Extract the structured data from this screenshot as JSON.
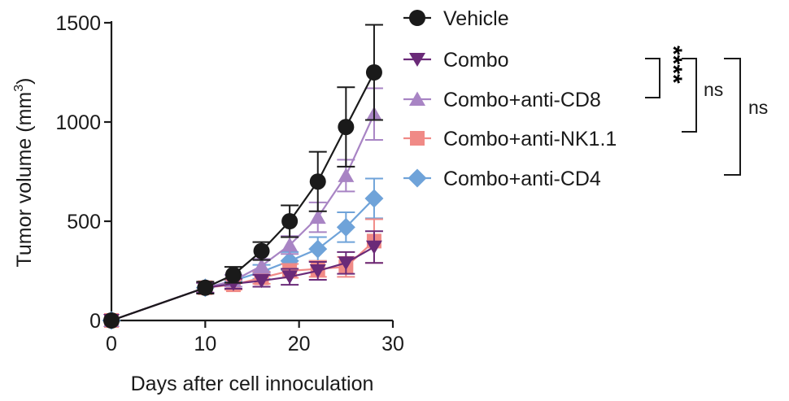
{
  "chart_data": {
    "type": "line",
    "title": "",
    "xlabel": "Days after cell innoculation",
    "ylabel_main": "Tumor  volume (mm",
    "ylabel_sup": "3",
    "ylabel_close": ")",
    "xlim": [
      0,
      30
    ],
    "ylim": [
      0,
      1500
    ],
    "xticks": [
      0,
      10,
      20,
      30
    ],
    "yticks": [
      0,
      500,
      1000,
      1500
    ],
    "x": [
      0,
      10,
      13,
      16,
      19,
      22,
      25,
      28
    ],
    "series": [
      {
        "name": "Vehicle",
        "color": "#1a1a1a",
        "marker": "circle",
        "values": [
          0,
          165,
          230,
          350,
          500,
          700,
          975,
          1250
        ],
        "errors": [
          0,
          30,
          40,
          45,
          80,
          150,
          200,
          240
        ]
      },
      {
        "name": "Combo",
        "color": "#6a2a78",
        "marker": "triangle-down",
        "values": [
          0,
          165,
          185,
          200,
          220,
          250,
          290,
          370
        ],
        "errors": [
          0,
          25,
          25,
          30,
          40,
          45,
          55,
          80
        ]
      },
      {
        "name": "Combo+anti-CD8",
        "color": "#a884c4",
        "marker": "triangle-up",
        "values": [
          0,
          165,
          200,
          275,
          380,
          520,
          730,
          1040
        ],
        "errors": [
          0,
          25,
          30,
          35,
          45,
          75,
          80,
          130
        ]
      },
      {
        "name": "Combo+anti-NK1.1",
        "color": "#f08a86",
        "marker": "square",
        "values": [
          0,
          165,
          180,
          215,
          250,
          260,
          270,
          400
        ],
        "errors": [
          0,
          25,
          25,
          30,
          35,
          40,
          50,
          110
        ]
      },
      {
        "name": "Combo+anti-CD4",
        "color": "#6fa3d9",
        "marker": "diamond",
        "values": [
          0,
          165,
          200,
          245,
          300,
          360,
          470,
          615
        ],
        "errors": [
          0,
          25,
          30,
          35,
          45,
          60,
          75,
          100
        ]
      }
    ],
    "annotations": [
      {
        "label": "****",
        "between": [
          "Combo",
          "Combo+anti-CD8"
        ]
      },
      {
        "label": "ns",
        "between": [
          "Combo",
          "Combo+anti-NK1.1"
        ]
      },
      {
        "label": "ns",
        "between": [
          "Combo",
          "Combo+anti-CD4"
        ]
      }
    ]
  }
}
